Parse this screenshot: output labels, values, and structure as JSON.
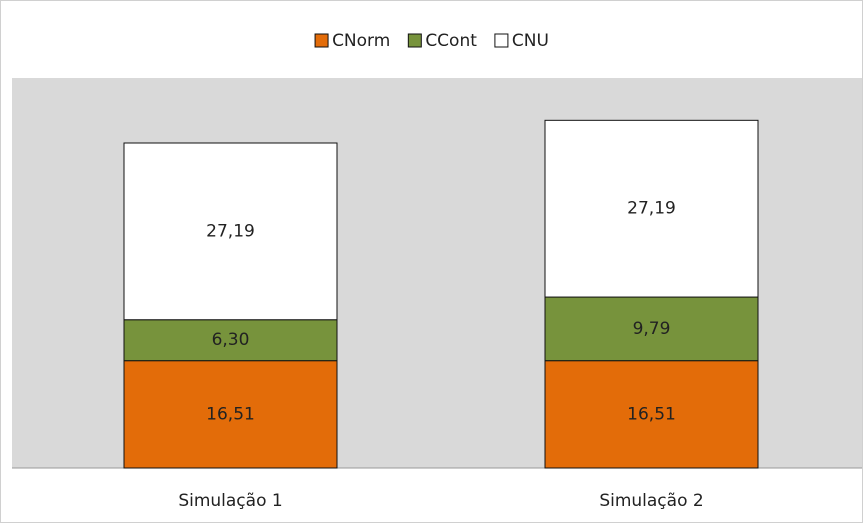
{
  "chart_data": {
    "type": "bar",
    "stacked": true,
    "categories": [
      "Simulação 1",
      "Simulação 2"
    ],
    "series": [
      {
        "name": "CNorm",
        "color": "#e36c09",
        "values": [
          16.51,
          16.51
        ],
        "value_labels": [
          "16,51",
          "16,51"
        ]
      },
      {
        "name": "CCont",
        "color": "#77933c",
        "values": [
          6.3,
          9.79
        ],
        "value_labels": [
          "6,30",
          "9,79"
        ]
      },
      {
        "name": "CNU",
        "color": "#ffffff",
        "values": [
          27.19,
          27.19
        ],
        "value_labels": [
          "27,19",
          "27,19"
        ]
      }
    ],
    "ylim": [
      0,
      60
    ],
    "legend": "top"
  }
}
